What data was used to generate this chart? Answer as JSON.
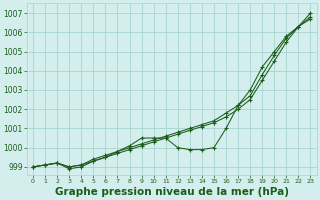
{
  "x": [
    0,
    1,
    2,
    3,
    4,
    5,
    6,
    7,
    8,
    9,
    10,
    11,
    12,
    13,
    14,
    15,
    16,
    17,
    18,
    19,
    20,
    21,
    22,
    23
  ],
  "line1_straight": [
    999.0,
    999.1,
    999.2,
    999.0,
    999.1,
    999.3,
    999.5,
    999.7,
    999.9,
    1000.1,
    1000.3,
    1000.5,
    1000.7,
    1000.9,
    1001.1,
    1001.3,
    1001.6,
    1002.0,
    1002.5,
    1003.5,
    1004.5,
    1005.5,
    1006.3,
    1007.0
  ],
  "line2_straight": [
    999.0,
    999.1,
    999.2,
    999.0,
    999.1,
    999.4,
    999.6,
    999.8,
    1000.0,
    1000.2,
    1000.4,
    1000.6,
    1000.8,
    1001.0,
    1001.2,
    1001.4,
    1001.8,
    1002.2,
    1002.7,
    1003.8,
    1004.8,
    1005.7,
    1006.3,
    1006.7
  ],
  "line3_curved": [
    999.0,
    999.1,
    999.2,
    998.9,
    999.0,
    999.3,
    999.5,
    999.8,
    1000.1,
    1000.5,
    1000.5,
    1000.5,
    1000.0,
    999.9,
    999.9,
    1000.0,
    1001.0,
    1002.2,
    1003.0,
    1004.2,
    1005.0,
    1005.8,
    1006.3,
    1006.8
  ],
  "bg_color": "#d4eeed",
  "grid_color": "#a8d4d0",
  "line_color": "#1a5c1a",
  "xlabel": "Graphe pression niveau de la mer (hPa)",
  "xlabel_color": "#1a5c1a",
  "ylim_min": 998.6,
  "ylim_max": 1007.5,
  "yticks": [
    999,
    1000,
    1001,
    1002,
    1003,
    1004,
    1005,
    1006,
    1007
  ],
  "xticks": [
    0,
    1,
    2,
    3,
    4,
    5,
    6,
    7,
    8,
    9,
    10,
    11,
    12,
    13,
    14,
    15,
    16,
    17,
    18,
    19,
    20,
    21,
    22,
    23
  ],
  "tick_color": "#1a5c1a",
  "xtick_fontsize": 4.5,
  "ytick_fontsize": 5.5,
  "xlabel_fontsize": 7.5
}
